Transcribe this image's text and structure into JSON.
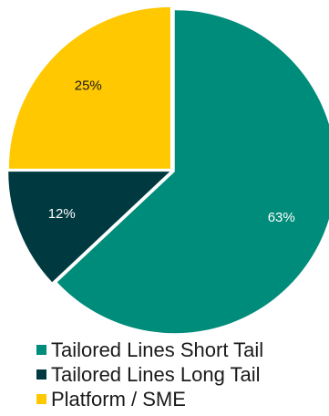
{
  "chart_data": {
    "type": "pie",
    "title": "",
    "slices": [
      {
        "label": "Tailored Lines Short Tail",
        "value": 63,
        "display": "63%",
        "color": "#008C7A",
        "text_color": "#ffffff"
      },
      {
        "label": "Tailored Lines Long Tail",
        "value": 12,
        "display": "12%",
        "color": "#003A40",
        "text_color": "#ffffff"
      },
      {
        "label": "Platform / SME",
        "value": 25,
        "display": "25%",
        "color": "#FFC800",
        "text_color": "#1a1a1a"
      }
    ],
    "start_direction": "12 o'clock",
    "direction": "clockwise",
    "legend_position": "bottom"
  }
}
